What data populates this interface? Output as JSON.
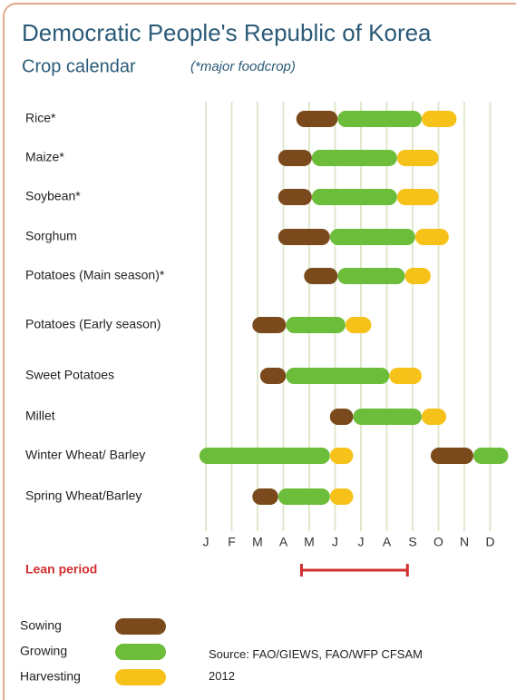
{
  "chart_data": {
    "type": "timeline",
    "title": "Democratic People's Republic of Korea",
    "subtitle": "Crop calendar",
    "note": "(*major foodcrop)",
    "categories": [
      "Rice*",
      "Maize*",
      "Soybean*",
      "Sorghum",
      "Potatoes (Main season)*",
      "Potatoes (Early season)",
      "Sweet Potatoes",
      "Millet",
      "Winter Wheat/ Barley",
      "Spring Wheat/Barley"
    ],
    "series": [
      {
        "name": "Sowing",
        "color": "#7a4a1c",
        "values": [
          [
            [
              4.5,
              6.1
            ]
          ],
          [
            [
              3.8,
              5.1
            ]
          ],
          [
            [
              3.8,
              5.1
            ]
          ],
          [
            [
              3.8,
              5.8
            ]
          ],
          [
            [
              4.8,
              6.1
            ]
          ],
          [
            [
              2.8,
              4.1
            ]
          ],
          [
            [
              3.1,
              4.1
            ]
          ],
          [
            [
              5.8,
              6.7
            ]
          ],
          [
            [
              9.7,
              11.35
            ]
          ],
          [
            [
              2.8,
              3.8
            ]
          ]
        ]
      },
      {
        "name": "Growing",
        "color": "#6cbd3a",
        "values": [
          [
            [
              6.1,
              9.35
            ]
          ],
          [
            [
              5.1,
              8.4
            ]
          ],
          [
            [
              5.1,
              8.4
            ]
          ],
          [
            [
              5.8,
              9.1
            ]
          ],
          [
            [
              6.1,
              8.7
            ]
          ],
          [
            [
              4.1,
              6.4
            ]
          ],
          [
            [
              4.1,
              8.1
            ]
          ],
          [
            [
              6.7,
              9.35
            ]
          ],
          [
            [
              0.75,
              5.8
            ],
            [
              11.35,
              12.7
            ]
          ],
          [
            [
              3.8,
              5.8
            ]
          ]
        ]
      },
      {
        "name": "Harvesting",
        "color": "#f6c21a",
        "values": [
          [
            [
              9.35,
              10.7
            ]
          ],
          [
            [
              8.4,
              10.0
            ]
          ],
          [
            [
              8.4,
              10.0
            ]
          ],
          [
            [
              9.1,
              10.4
            ]
          ],
          [
            [
              8.7,
              9.7
            ]
          ],
          [
            [
              6.4,
              7.4
            ]
          ],
          [
            [
              8.1,
              9.35
            ]
          ],
          [
            [
              9.35,
              10.3
            ]
          ],
          [
            [
              5.8,
              6.7
            ]
          ],
          [
            [
              5.8,
              6.7
            ]
          ]
        ]
      }
    ],
    "xlim": [
      0.7,
      12.8
    ],
    "xticks": [
      {
        "value": 1,
        "label": "J"
      },
      {
        "value": 2,
        "label": "F"
      },
      {
        "value": 3,
        "label": "M"
      },
      {
        "value": 4,
        "label": "A"
      },
      {
        "value": 5,
        "label": "M"
      },
      {
        "value": 6,
        "label": "J"
      },
      {
        "value": 7,
        "label": "J"
      },
      {
        "value": 8,
        "label": "A"
      },
      {
        "value": 9,
        "label": "S"
      },
      {
        "value": 10,
        "label": "O"
      },
      {
        "value": 11,
        "label": "N"
      },
      {
        "value": 12,
        "label": "D"
      }
    ],
    "grid": true,
    "lean_period": {
      "label": "Lean period",
      "color": "#d0302f",
      "start": 4.7,
      "end": 8.8
    },
    "source": "Source: FAO/GIEWS, FAO/WFP CFSAM 2012"
  }
}
